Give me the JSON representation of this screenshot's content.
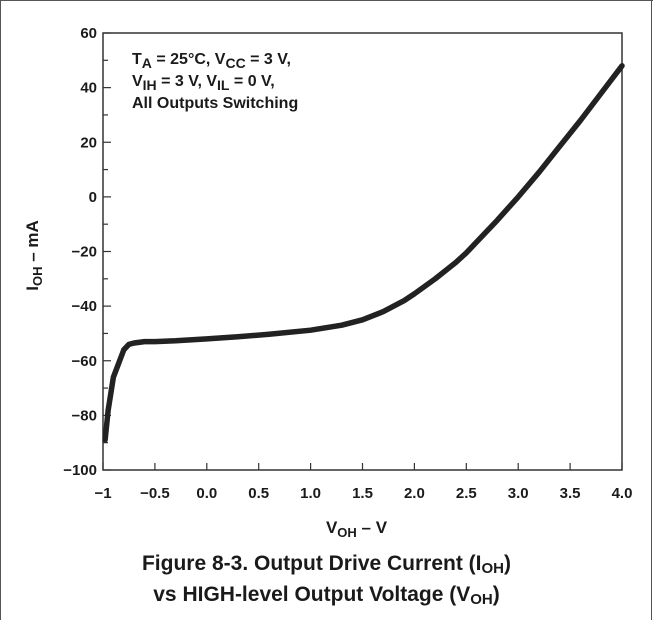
{
  "chart_data": {
    "type": "line",
    "x": [
      -0.98,
      -0.95,
      -0.9,
      -0.85,
      -0.8,
      -0.75,
      -0.7,
      -0.6,
      -0.5,
      -0.3,
      0.0,
      0.3,
      0.6,
      1.0,
      1.3,
      1.5,
      1.7,
      1.9,
      2.0,
      2.2,
      2.4,
      2.5,
      2.6,
      2.8,
      3.0,
      3.2,
      3.4,
      3.6,
      3.8,
      4.0
    ],
    "series": [
      {
        "values": [
          -89,
          -78,
          -66,
          -61,
          -56,
          -54,
          -53.5,
          -53,
          -53,
          -52.7,
          -52,
          -51.2,
          -50.3,
          -48.8,
          -47,
          -45,
          -42,
          -38,
          -35.5,
          -30,
          -24,
          -20.5,
          -16.5,
          -8.5,
          0,
          9,
          18.5,
          28,
          38,
          48
        ]
      }
    ],
    "xlim": [
      -1,
      4
    ],
    "ylim": [
      -100,
      60
    ],
    "x_ticks": [
      "−1",
      "−0.5",
      "0.0",
      "0.5",
      "1.0",
      "1.5",
      "2.0",
      "2.5",
      "3.0",
      "3.5",
      "4.0"
    ],
    "y_ticks": [
      "60",
      "40",
      "20",
      "0",
      "−20",
      "−40",
      "−60",
      "−80",
      "−100"
    ],
    "xlabel": {
      "main": "V",
      "sub": "OH",
      "rest": " – V"
    },
    "ylabel": {
      "main": "I",
      "sub": "OH",
      "rest": " – mA"
    },
    "annotation": [
      [
        {
          "t": "T"
        },
        {
          "t": "A",
          "sub": true
        },
        {
          "t": " = 25°C, V"
        },
        {
          "t": "CC",
          "sub": true
        },
        {
          "t": " = 3 V,"
        }
      ],
      [
        {
          "t": "V"
        },
        {
          "t": "IH",
          "sub": true
        },
        {
          "t": " = 3 V, V"
        },
        {
          "t": "IL",
          "sub": true
        },
        {
          "t": " = 0 V,"
        }
      ],
      [
        {
          "t": "All Outputs Switching"
        }
      ]
    ],
    "grid": false,
    "line_color": "#222222"
  },
  "caption": {
    "line1": {
      "text": "Figure 8-3. Output Drive Current (I",
      "sub": "OH",
      "end": ")"
    },
    "line2": {
      "text": "vs HIGH-level Output Voltage (V",
      "sub": "OH",
      "end": ")"
    }
  }
}
